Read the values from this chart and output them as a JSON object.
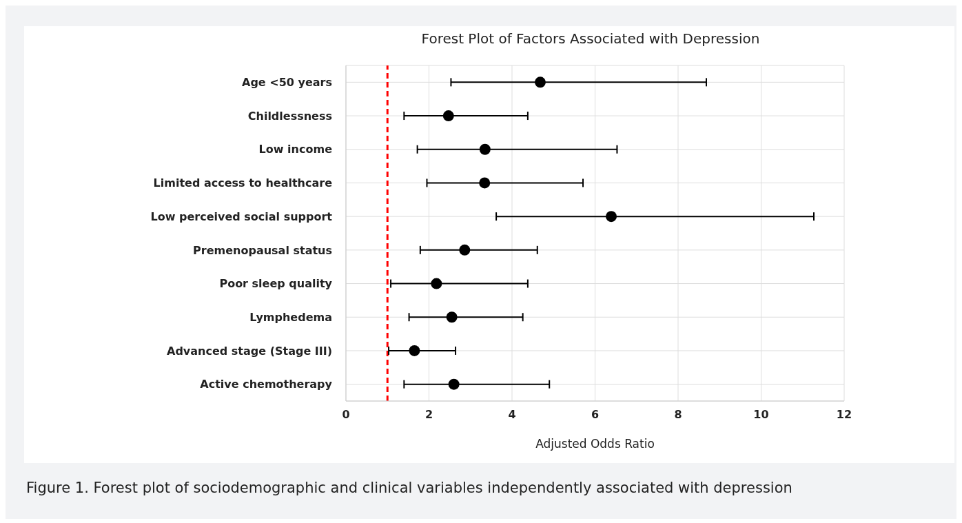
{
  "chart_data": {
    "type": "scatter",
    "title": "Forest Plot of Factors Associated with Depression",
    "xlabel": "Adjusted Odds Ratio",
    "annotations": [
      "Figure 1. Forest plot of sociodemographic and clinical variables independently associated with depression"
    ],
    "categories": [
      "Age <50 years",
      "Childlessness",
      "Low income",
      "Limited access to healthcare",
      "Low perceived social support",
      "Premenopausal status",
      "Poor sleep quality",
      "Lymphedema",
      "Advanced stage (Stage III)",
      "Active chemotherapy"
    ],
    "orientation": "horizontal",
    "series": [
      {
        "color": "#000000",
        "values": [
          4.68,
          2.47,
          3.35,
          3.34,
          6.39,
          2.86,
          2.18,
          2.55,
          1.65,
          2.6
        ],
        "errors": [
          [
            2.53,
            8.68
          ],
          [
            1.4,
            4.38
          ],
          [
            1.72,
            6.53
          ],
          [
            1.95,
            5.71
          ],
          [
            3.62,
            11.27
          ],
          [
            1.79,
            4.61
          ],
          [
            1.08,
            4.38
          ],
          [
            1.52,
            4.26
          ],
          [
            1.03,
            2.64
          ],
          [
            1.4,
            4.9
          ]
        ]
      }
    ],
    "xlim": [
      0,
      12
    ],
    "xticks": [
      0,
      2,
      4,
      6,
      8,
      10,
      12
    ],
    "grid": true,
    "marker": "circle",
    "ref_lines": [
      {
        "axis": "x",
        "value": 1,
        "color": "#ff0000",
        "line_style": "dashed"
      }
    ]
  }
}
